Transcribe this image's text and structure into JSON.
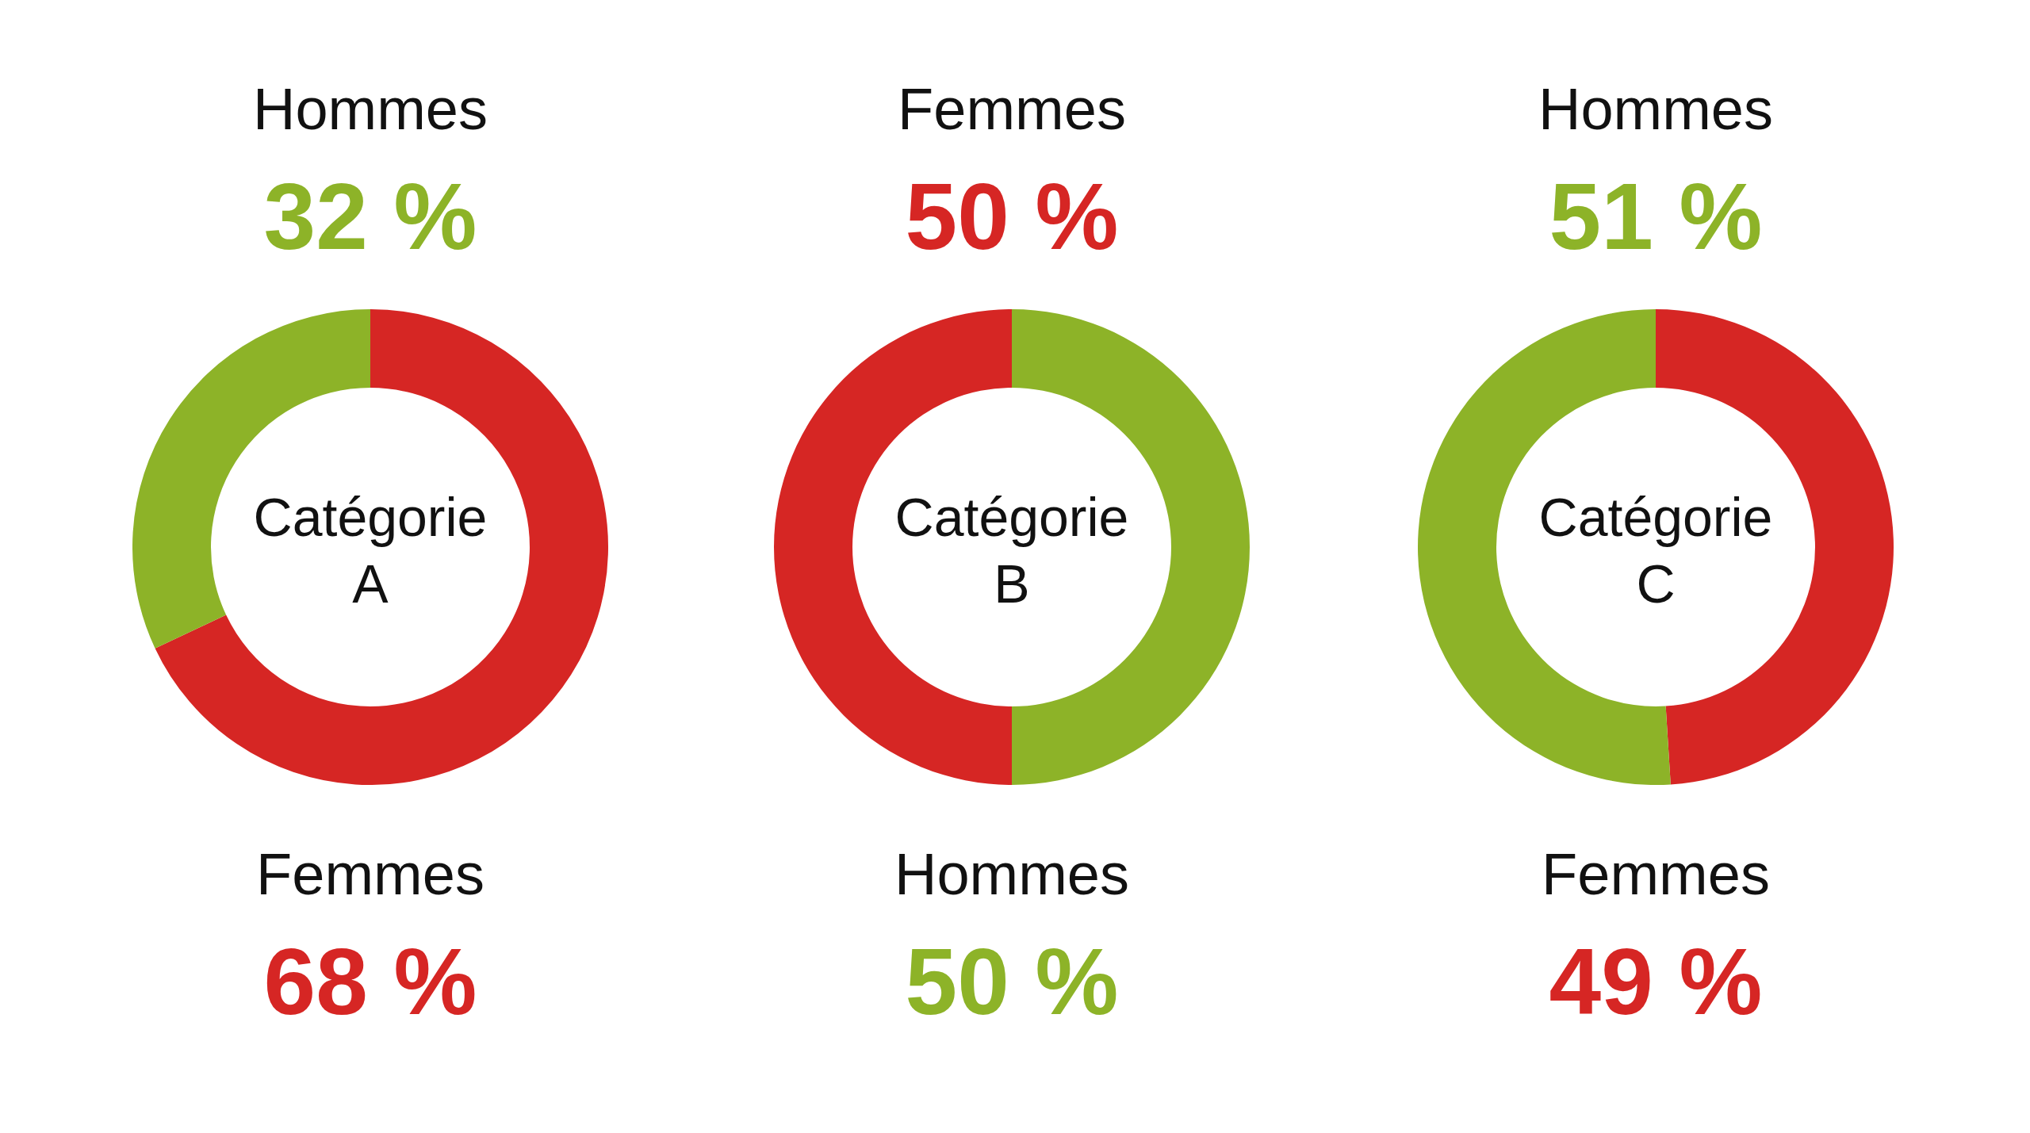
{
  "chart_data": [
    {
      "type": "donut",
      "title": "Catégorie A",
      "categories": [
        "Hommes",
        "Femmes"
      ],
      "values": [
        32,
        68
      ],
      "colors": [
        "#8db328",
        "#d62624"
      ],
      "value_labels": [
        "32 %",
        "68 %"
      ]
    },
    {
      "type": "donut",
      "title": "Catégorie B",
      "categories": [
        "Femmes",
        "Hommes"
      ],
      "values": [
        50,
        50
      ],
      "colors": [
        "#d62624",
        "#8db328"
      ],
      "value_labels": [
        "50 %",
        "50 %"
      ]
    },
    {
      "type": "donut",
      "title": "Catégorie C",
      "categories": [
        "Hommes",
        "Femmes"
      ],
      "values": [
        51,
        49
      ],
      "colors": [
        "#8db328",
        "#d62624"
      ],
      "value_labels": [
        "51 %",
        "49 %"
      ]
    }
  ]
}
